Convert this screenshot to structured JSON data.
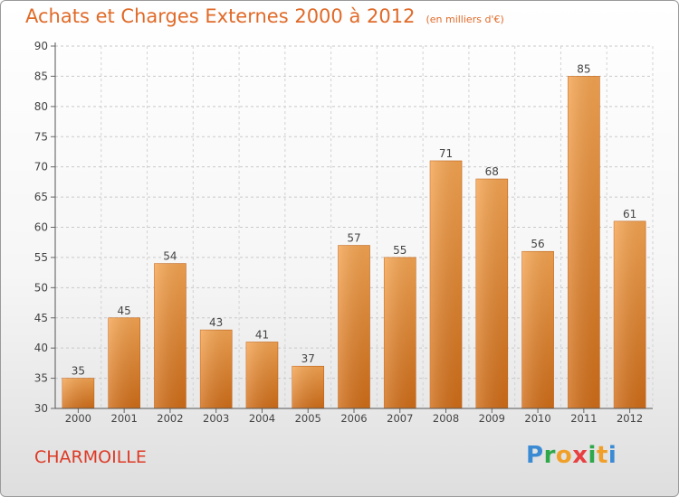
{
  "header": {
    "title": "Achats et Charges Externes 2000 à 2012",
    "unit": "(en milliers d'€)"
  },
  "footer": {
    "commune": "CHARMOILLE",
    "logo": {
      "letters": [
        "P",
        "r",
        "o",
        "x",
        "i",
        "t",
        "i"
      ],
      "colors": [
        "#3a8ad4",
        "#2fa84a",
        "#f0a028",
        "#e84040",
        "#2fa84a",
        "#f0a028",
        "#3a8ad4"
      ]
    }
  },
  "colors": {
    "title": "#e06a28",
    "commune": "#dd3a26",
    "bar_top": "#f5a552",
    "bar_bottom": "#d06d18"
  },
  "chart_data": {
    "type": "bar",
    "categories": [
      "2000",
      "2001",
      "2002",
      "2003",
      "2004",
      "2005",
      "2006",
      "2007",
      "2008",
      "2009",
      "2010",
      "2011",
      "2012"
    ],
    "values": [
      35,
      45,
      54,
      43,
      41,
      37,
      57,
      55,
      71,
      68,
      56,
      85,
      61
    ],
    "ylim": [
      30,
      90
    ],
    "yticks": [
      30,
      35,
      40,
      45,
      50,
      55,
      60,
      65,
      70,
      75,
      80,
      85,
      90
    ],
    "grid": true
  }
}
